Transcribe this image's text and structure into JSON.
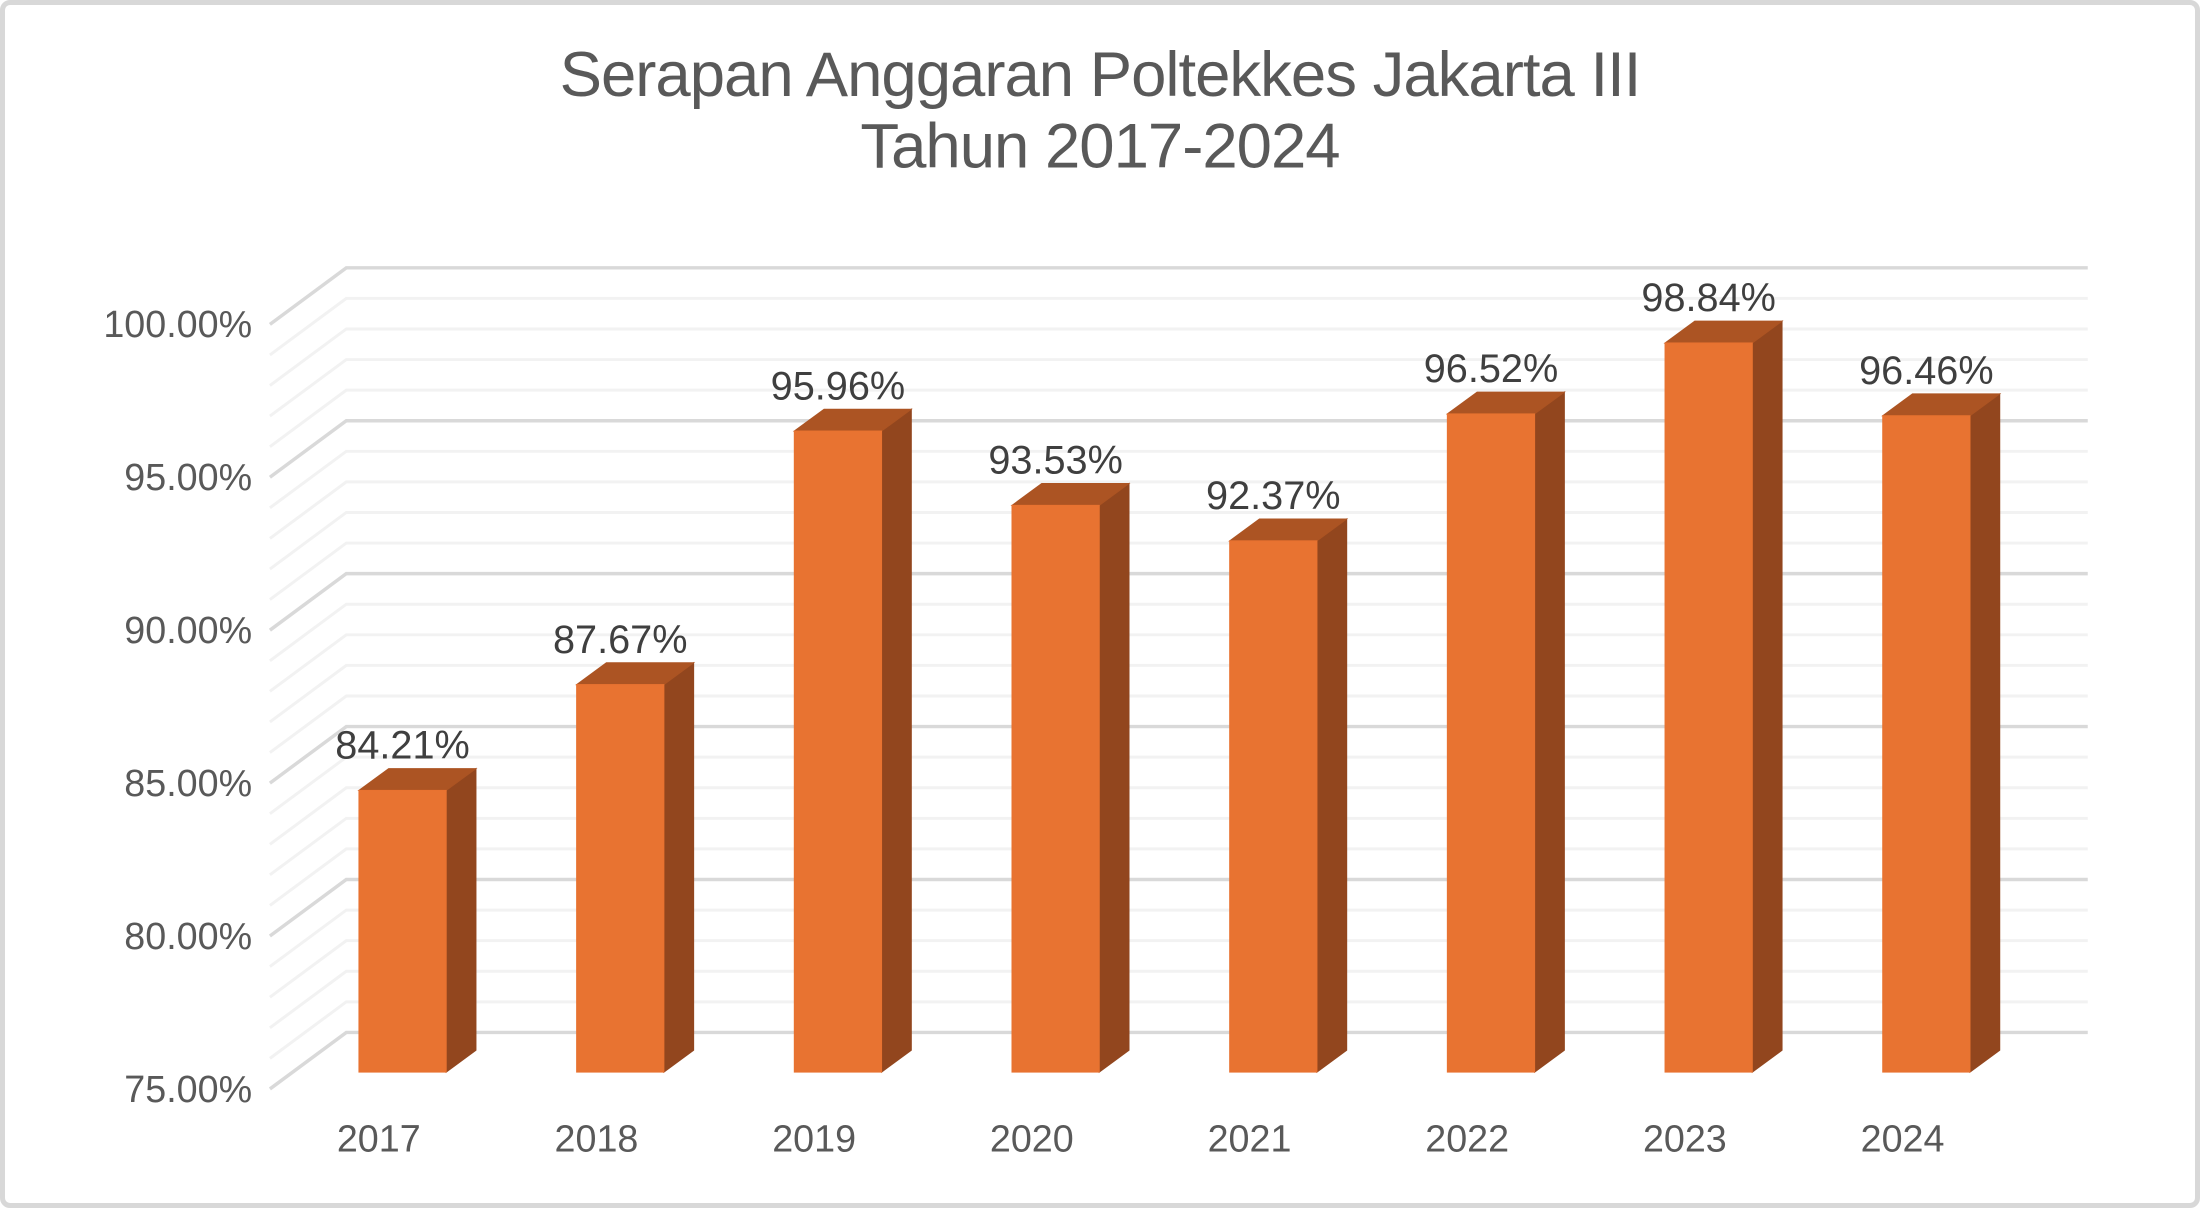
{
  "title": {
    "line1": "Serapan Anggaran Poltekkes Jakarta III",
    "line2": "Tahun 2017-2024"
  },
  "chart_data": {
    "type": "bar",
    "style": "3d-column",
    "title": "Serapan Anggaran Poltekkes Jakarta III Tahun 2017-2024",
    "categories": [
      "2017",
      "2018",
      "2019",
      "2020",
      "2021",
      "2022",
      "2023",
      "2024"
    ],
    "values": [
      84.21,
      87.67,
      95.96,
      93.53,
      92.37,
      96.52,
      98.84,
      96.46
    ],
    "data_labels": [
      "84.21%",
      "87.67%",
      "95.96%",
      "93.53%",
      "92.37%",
      "96.52%",
      "98.84%",
      "96.46%"
    ],
    "xlabel": "",
    "ylabel": "",
    "ylim": [
      75,
      100
    ],
    "y_major_step": 5,
    "y_minor_step": 1,
    "y_tick_values": [
      75,
      80,
      85,
      90,
      95,
      100
    ],
    "y_tick_labels": [
      "75.00%",
      "80.00%",
      "85.00%",
      "90.00%",
      "95.00%",
      "100.00%"
    ],
    "grid": "major-and-minor-horizontal",
    "legend": "none",
    "colors": {
      "bar_front": "#E87331",
      "bar_top": "#AC5423",
      "bar_side": "#92461E",
      "grid_major": "#D9D9D9",
      "grid_minor": "#F2F2F2",
      "axis_text": "#595959",
      "data_label_text": "#3F3F3F",
      "title_text": "#595959",
      "frame_border": "#D8D8D8",
      "background": "#FFFFFF"
    }
  }
}
